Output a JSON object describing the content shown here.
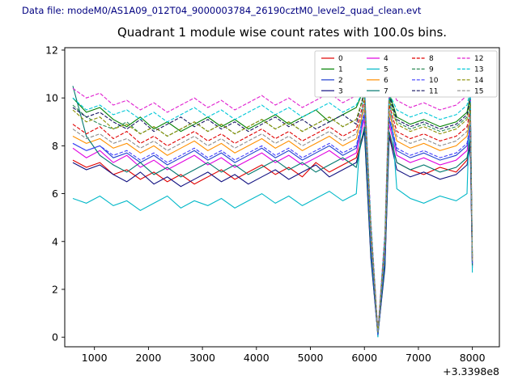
{
  "header": {
    "data_file_label": "Data file: modeM0/AS1A09_012T04_9000003784_26190cztM0_level2_quad_clean.evt"
  },
  "colors": {
    "datafile_text": "#000080",
    "axis": "#000000",
    "background": "#ffffff",
    "legend_border": "#cccccc"
  },
  "chart_data": {
    "type": "line",
    "title": "Quadrant 1 module wise count rates with 100.0s bins.",
    "xlabel": "",
    "ylabel": "",
    "x_offset_label": "+3.3398e8",
    "xlim": [
      450,
      8500
    ],
    "ylim": [
      -0.4,
      12.1
    ],
    "x_ticks": [
      1000,
      2000,
      3000,
      4000,
      5000,
      6000,
      7000,
      8000
    ],
    "y_ticks": [
      0,
      2,
      4,
      6,
      8,
      10,
      12
    ],
    "grid": false,
    "legend_position": "upper right",
    "x": [
      600,
      850,
      1100,
      1350,
      1600,
      1850,
      2100,
      2350,
      2600,
      2850,
      3100,
      3350,
      3600,
      3850,
      4100,
      4350,
      4600,
      4850,
      5100,
      5350,
      5600,
      5850,
      6000,
      6120,
      6250,
      6380,
      6460,
      6600,
      6850,
      7100,
      7400,
      7700,
      7900,
      7960,
      8000
    ],
    "series": [
      {
        "name": "0",
        "color": "#e00000",
        "dash": "solid",
        "values": [
          7.4,
          7.1,
          7.3,
          6.8,
          7.0,
          6.6,
          6.9,
          6.5,
          6.8,
          6.4,
          6.7,
          7.0,
          6.6,
          6.9,
          7.2,
          6.8,
          7.1,
          6.7,
          7.3,
          6.9,
          7.2,
          7.5,
          8.7,
          3.4,
          0.1,
          3.0,
          8.5,
          7.3,
          7.0,
          6.8,
          7.1,
          6.9,
          7.4,
          8.2,
          3.1
        ]
      },
      {
        "name": "1",
        "color": "#008000",
        "dash": "solid",
        "values": [
          10.0,
          9.4,
          9.6,
          9.1,
          8.8,
          9.2,
          8.7,
          9.0,
          8.6,
          8.9,
          9.2,
          8.8,
          9.1,
          8.7,
          9.0,
          9.3,
          8.9,
          9.2,
          9.5,
          9.0,
          9.3,
          9.6,
          10.4,
          4.5,
          0.2,
          4.0,
          10.2,
          9.2,
          8.9,
          9.1,
          8.8,
          9.0,
          9.4,
          10.1,
          3.3
        ]
      },
      {
        "name": "2",
        "color": "#2040d0",
        "dash": "solid",
        "values": [
          8.1,
          7.8,
          8.0,
          7.5,
          7.7,
          7.3,
          7.6,
          7.2,
          7.5,
          7.8,
          7.4,
          7.7,
          7.3,
          7.6,
          7.9,
          7.5,
          7.8,
          7.4,
          7.7,
          8.0,
          7.6,
          7.9,
          9.3,
          3.8,
          0.1,
          3.4,
          9.1,
          7.8,
          7.5,
          7.7,
          7.4,
          7.6,
          8.0,
          8.8,
          3.0
        ]
      },
      {
        "name": "3",
        "color": "#101080",
        "dash": "solid",
        "values": [
          7.3,
          7.0,
          7.2,
          6.8,
          6.5,
          6.9,
          6.4,
          6.7,
          6.3,
          6.6,
          6.9,
          6.5,
          6.8,
          6.4,
          6.7,
          7.0,
          6.6,
          6.9,
          7.2,
          6.7,
          7.0,
          7.3,
          8.6,
          3.3,
          0.1,
          2.9,
          8.4,
          7.0,
          6.7,
          6.9,
          6.6,
          6.8,
          7.2,
          8.0,
          2.9
        ]
      },
      {
        "name": "4",
        "color": "#e000e0",
        "dash": "solid",
        "values": [
          7.9,
          7.5,
          7.8,
          7.3,
          7.6,
          7.1,
          7.4,
          7.0,
          7.3,
          7.6,
          7.2,
          7.5,
          7.1,
          7.4,
          7.7,
          7.3,
          7.6,
          7.2,
          7.5,
          7.8,
          7.4,
          7.7,
          9.1,
          3.6,
          0.1,
          3.2,
          8.9,
          7.6,
          7.3,
          7.5,
          7.2,
          7.4,
          7.8,
          8.6,
          3.0
        ]
      },
      {
        "name": "5",
        "color": "#00b8c8",
        "dash": "solid",
        "values": [
          5.8,
          5.6,
          5.9,
          5.5,
          5.7,
          5.3,
          5.6,
          5.9,
          5.4,
          5.7,
          5.5,
          5.8,
          5.4,
          5.7,
          6.0,
          5.6,
          5.9,
          5.5,
          5.8,
          6.1,
          5.7,
          6.0,
          10.7,
          4.0,
          0.0,
          3.6,
          10.4,
          6.2,
          5.8,
          5.6,
          5.9,
          5.7,
          6.0,
          10.4,
          2.7
        ]
      },
      {
        "name": "6",
        "color": "#ff9000",
        "dash": "solid",
        "values": [
          8.4,
          8.1,
          8.3,
          7.9,
          8.1,
          7.7,
          8.0,
          7.6,
          7.9,
          8.2,
          7.8,
          8.1,
          7.7,
          8.0,
          8.3,
          7.9,
          8.2,
          7.8,
          8.1,
          8.4,
          8.0,
          8.3,
          9.6,
          4.1,
          0.2,
          3.7,
          9.4,
          8.2,
          7.9,
          8.1,
          7.8,
          8.0,
          8.4,
          9.2,
          3.2
        ]
      },
      {
        "name": "7",
        "color": "#00786e",
        "dash": "solid",
        "values": [
          10.5,
          8.4,
          7.6,
          7.2,
          6.9,
          7.3,
          6.8,
          7.1,
          6.7,
          7.0,
          7.3,
          6.9,
          7.2,
          6.8,
          7.1,
          7.4,
          7.0,
          7.3,
          6.9,
          7.2,
          7.5,
          7.1,
          8.8,
          3.5,
          0.1,
          3.1,
          8.6,
          7.3,
          7.0,
          7.2,
          6.9,
          7.1,
          7.5,
          8.3,
          3.0
        ]
      },
      {
        "name": "8",
        "color": "#e00000",
        "dash": "dashed",
        "values": [
          8.9,
          8.5,
          8.8,
          8.3,
          8.6,
          8.1,
          8.4,
          8.0,
          8.3,
          8.6,
          8.2,
          8.5,
          8.1,
          8.4,
          8.7,
          8.3,
          8.6,
          8.2,
          8.5,
          8.8,
          8.4,
          8.7,
          9.9,
          4.4,
          0.2,
          3.9,
          9.7,
          8.6,
          8.3,
          8.5,
          8.2,
          8.4,
          8.8,
          9.5,
          3.3
        ]
      },
      {
        "name": "9",
        "color": "#2e8b57",
        "dash": "dashed",
        "values": [
          9.7,
          9.2,
          8.9,
          8.7,
          9.0,
          8.5,
          8.8,
          8.4,
          8.7,
          9.0,
          8.6,
          8.9,
          8.5,
          8.8,
          9.1,
          8.7,
          9.0,
          8.6,
          8.9,
          9.2,
          8.8,
          9.1,
          10.2,
          4.6,
          0.2,
          4.1,
          10.0,
          9.0,
          8.7,
          8.9,
          8.6,
          8.8,
          9.2,
          9.9,
          3.4
        ]
      },
      {
        "name": "10",
        "color": "#4040ff",
        "dash": "dashed",
        "values": [
          8.1,
          7.8,
          8.0,
          7.6,
          7.8,
          7.4,
          7.7,
          7.3,
          7.6,
          7.9,
          7.5,
          7.8,
          7.4,
          7.7,
          8.0,
          7.6,
          7.9,
          7.5,
          7.8,
          8.1,
          7.7,
          8.0,
          9.4,
          3.9,
          0.1,
          3.5,
          9.2,
          7.9,
          7.6,
          7.8,
          7.5,
          7.7,
          8.1,
          8.9,
          3.1
        ]
      },
      {
        "name": "11",
        "color": "#151560",
        "dash": "dashed",
        "values": [
          9.6,
          9.2,
          9.4,
          9.0,
          8.7,
          9.1,
          8.6,
          8.9,
          9.2,
          8.8,
          9.1,
          8.7,
          9.0,
          8.6,
          8.9,
          9.2,
          8.8,
          9.1,
          8.7,
          9.0,
          9.3,
          8.9,
          10.3,
          4.7,
          0.2,
          4.2,
          10.1,
          9.1,
          8.8,
          9.0,
          8.7,
          8.9,
          9.3,
          10.0,
          3.4
        ]
      },
      {
        "name": "12",
        "color": "#e020d0",
        "dash": "dashed",
        "values": [
          10.4,
          10.0,
          10.2,
          9.7,
          9.9,
          9.5,
          9.8,
          9.4,
          9.7,
          10.0,
          9.6,
          9.9,
          9.5,
          9.8,
          10.1,
          9.7,
          10.0,
          9.6,
          9.9,
          10.2,
          9.8,
          10.1,
          10.6,
          4.9,
          0.3,
          4.4,
          10.5,
          9.9,
          9.6,
          9.8,
          9.5,
          9.7,
          10.1,
          10.5,
          3.5
        ]
      },
      {
        "name": "13",
        "color": "#00c8d8",
        "dash": "dashed",
        "values": [
          10.0,
          9.5,
          9.7,
          9.3,
          9.5,
          9.1,
          9.4,
          9.0,
          9.3,
          9.6,
          9.2,
          9.5,
          9.1,
          9.4,
          9.7,
          9.3,
          9.6,
          9.2,
          9.5,
          9.8,
          9.4,
          9.7,
          10.4,
          4.8,
          0.2,
          4.3,
          10.2,
          9.5,
          9.2,
          9.4,
          9.1,
          9.3,
          9.7,
          10.3,
          3.4
        ]
      },
      {
        "name": "14",
        "color": "#8a8f00",
        "dash": "dashed",
        "values": [
          9.5,
          9.0,
          9.2,
          8.7,
          8.9,
          8.5,
          8.8,
          8.4,
          8.7,
          9.0,
          8.6,
          8.9,
          8.5,
          8.8,
          9.1,
          8.7,
          9.0,
          8.6,
          8.9,
          9.2,
          8.8,
          9.1,
          10.1,
          4.5,
          0.2,
          4.0,
          9.9,
          8.9,
          8.6,
          8.8,
          8.5,
          8.7,
          9.1,
          9.8,
          3.3
        ]
      },
      {
        "name": "15",
        "color": "#8c8c8c",
        "dash": "dashed",
        "values": [
          8.7,
          8.3,
          8.5,
          8.1,
          8.3,
          7.9,
          8.2,
          7.8,
          8.1,
          8.4,
          8.0,
          8.3,
          7.9,
          8.2,
          8.5,
          8.1,
          8.4,
          8.0,
          8.3,
          8.6,
          8.2,
          8.5,
          9.7,
          4.3,
          0.2,
          3.8,
          9.5,
          8.4,
          8.1,
          8.3,
          8.0,
          8.2,
          8.6,
          9.3,
          3.2
        ]
      }
    ]
  }
}
